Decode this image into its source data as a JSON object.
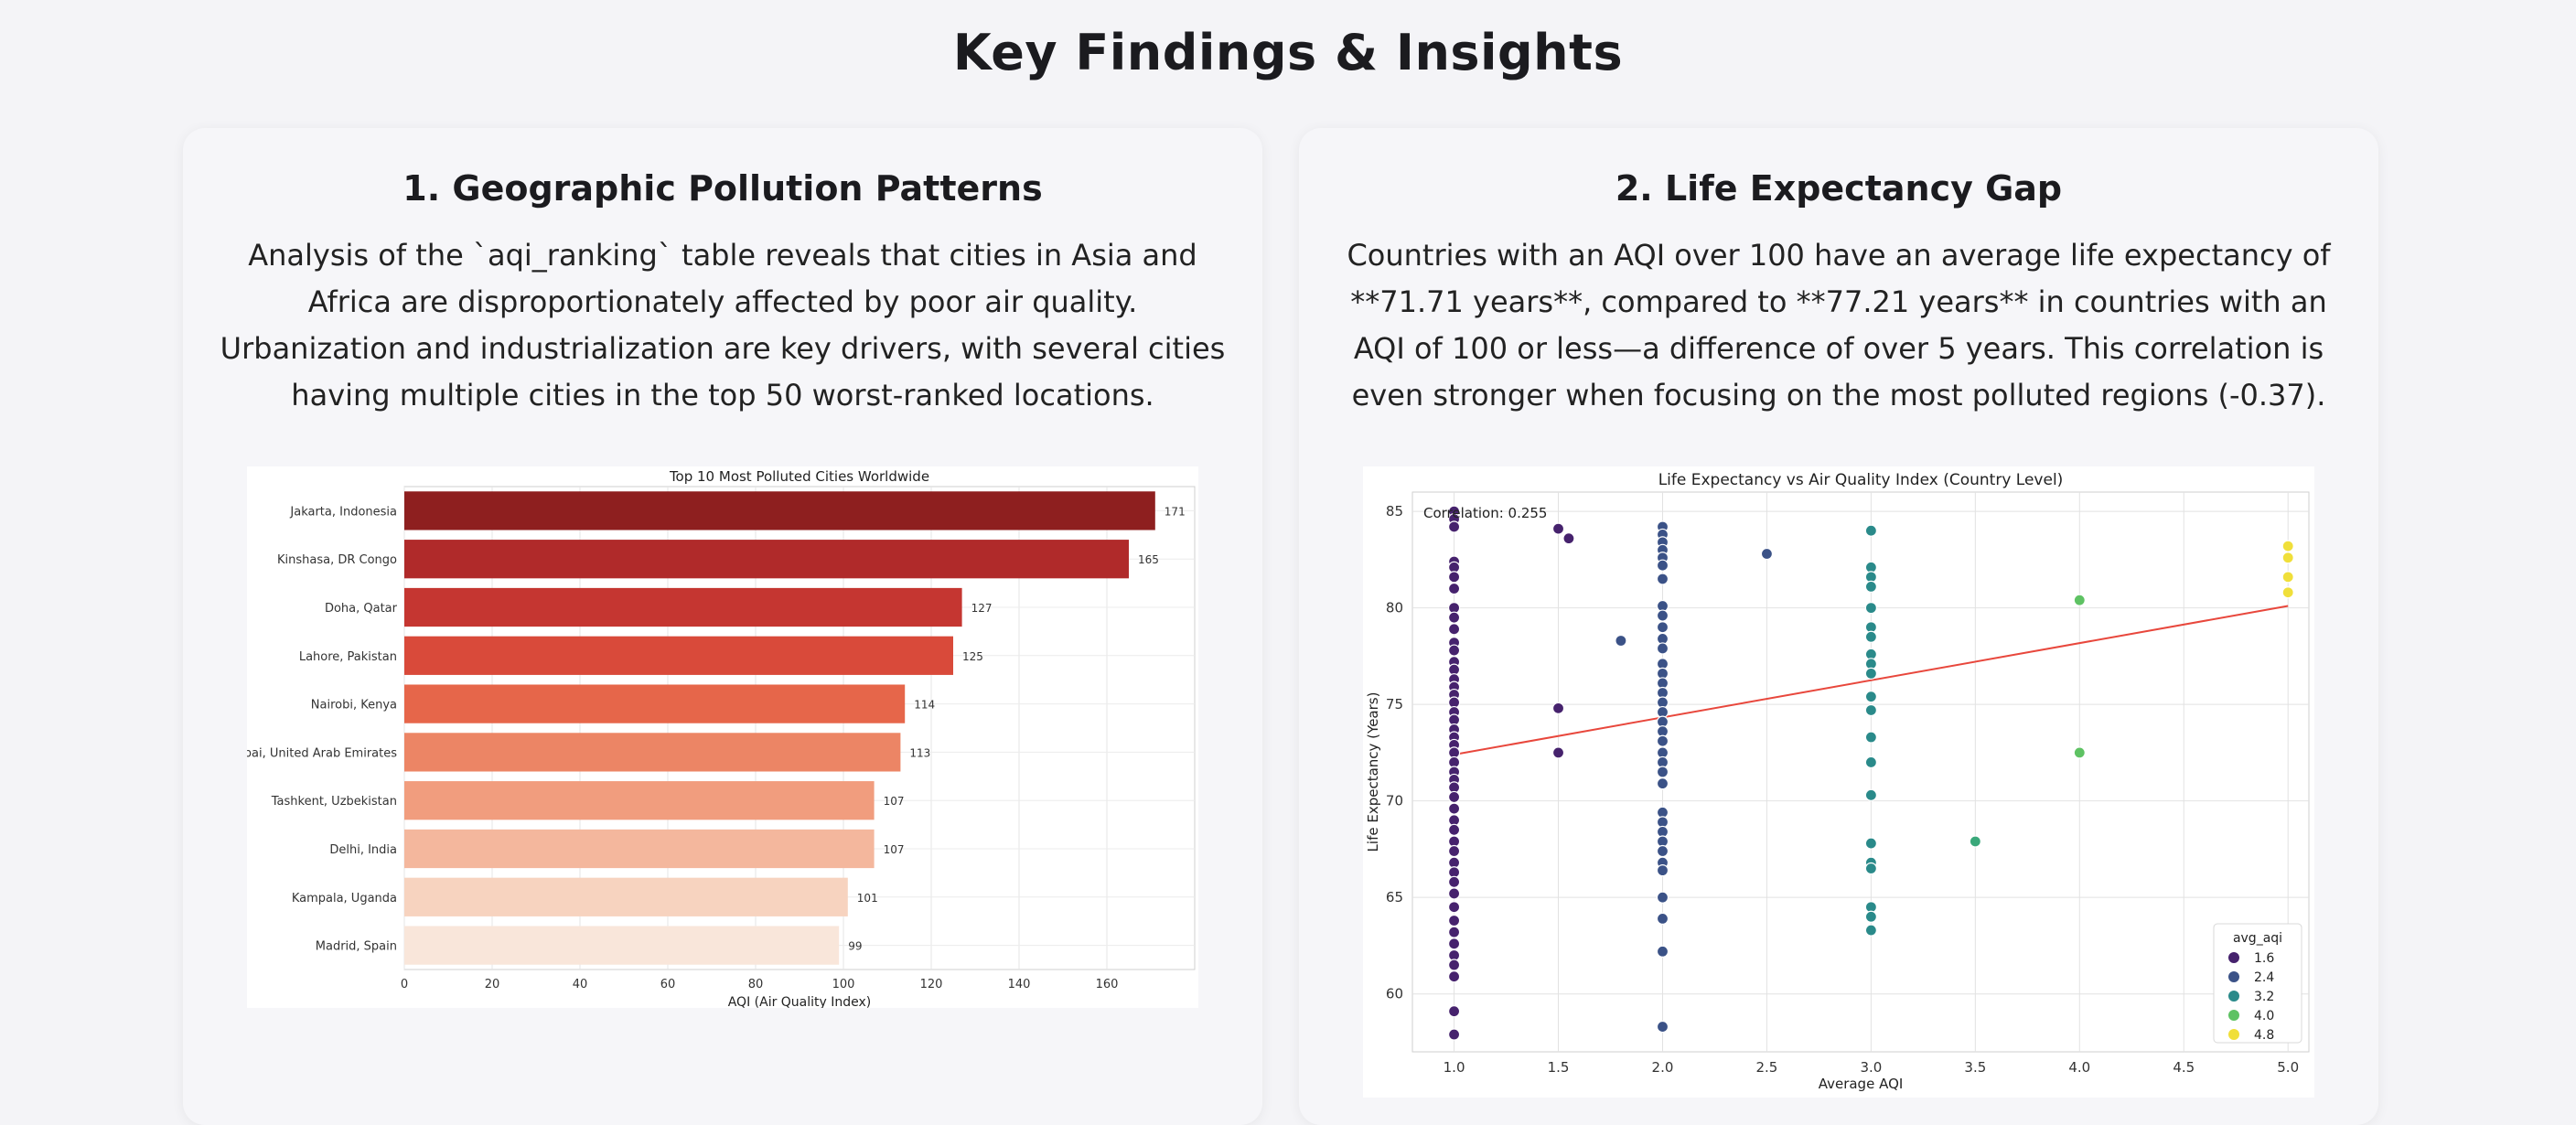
{
  "page": {
    "title": "Key Findings & Insights"
  },
  "cards": [
    {
      "heading": "1. Geographic Pollution Patterns",
      "body": "Analysis of the `aqi_ranking` table reveals that cities in Asia and Africa are disproportionately affected by poor air quality. Urbanization and industrialization are key drivers, with several cities having multiple cities in the top 50 worst-ranked locations."
    },
    {
      "heading": "2. Life Expectancy Gap",
      "body": "Countries with an AQI over 100 have an average life expectancy of **71.71 years**, compared to **77.21 years** in countries with an AQI of 100 or less—a difference of over 5 years. This correlation is even stronger when focusing on the most polluted regions (-0.37)."
    }
  ],
  "chart_data": [
    {
      "type": "bar",
      "orientation": "horizontal",
      "title": "Top 10 Most Polluted Cities Worldwide",
      "xlabel": "AQI (Air Quality Index)",
      "ylabel": "",
      "xlim": [
        0,
        180
      ],
      "xticks": [
        0,
        20,
        40,
        60,
        80,
        100,
        120,
        140,
        160
      ],
      "grid": true,
      "categories": [
        "Jakarta, Indonesia",
        "Kinshasa, DR Congo",
        "Doha, Qatar",
        "Lahore, Pakistan",
        "Nairobi, Kenya",
        "Dubai, United Arab Emirates",
        "Tashkent, Uzbekistan",
        "Delhi, India",
        "Kampala, Uganda",
        "Madrid, Spain"
      ],
      "values": [
        171,
        165,
        127,
        125,
        114,
        113,
        107,
        107,
        101,
        99
      ],
      "colors": [
        "#8e1f1f",
        "#b02a2a",
        "#c53631",
        "#d94a3a",
        "#e6664a",
        "#ec8565",
        "#f19d7e",
        "#f4b79d",
        "#f7d3bf",
        "#f9e6da"
      ]
    },
    {
      "type": "scatter",
      "title": "Life Expectancy vs Air Quality Index (Country Level)",
      "xlabel": "Average AQI",
      "ylabel": "Life Expectancy (Years)",
      "xlim": [
        0.8,
        5.1
      ],
      "ylim": [
        57,
        86
      ],
      "xticks": [
        1.0,
        1.5,
        2.0,
        2.5,
        3.0,
        3.5,
        4.0,
        4.5,
        5.0
      ],
      "yticks": [
        60,
        65,
        70,
        75,
        80,
        85
      ],
      "grid": true,
      "annotation": "Correlation: 0.255",
      "trendline": {
        "x": [
          1.0,
          5.0
        ],
        "y": [
          72.4,
          80.1
        ],
        "color": "#e8473c"
      },
      "legend": {
        "title": "avg_aqi",
        "position": "bottom-right",
        "entries": [
          {
            "label": "1.6",
            "color": "#46226d"
          },
          {
            "label": "2.4",
            "color": "#3b5287"
          },
          {
            "label": "3.2",
            "color": "#2a8a8a"
          },
          {
            "label": "4.0",
            "color": "#5ec263"
          },
          {
            "label": "4.8",
            "color": "#f0df3a"
          }
        ]
      },
      "series": [
        {
          "x": 1.0,
          "y": [
            85.0,
            84.6,
            84.2,
            82.4,
            82.1,
            81.6,
            81.0,
            80.0,
            79.5,
            78.9,
            78.2,
            77.8,
            77.2,
            76.8,
            76.3,
            75.9,
            75.5,
            75.1,
            74.6,
            74.2,
            73.7,
            73.3,
            72.9,
            72.5,
            72.0,
            71.5,
            71.1,
            70.7,
            70.2,
            69.6,
            69.0,
            68.5,
            67.9,
            67.4,
            66.8,
            66.3,
            65.8,
            65.2,
            64.5,
            63.8,
            63.2,
            62.6,
            62.0,
            61.5,
            60.9,
            59.1,
            57.9
          ],
          "color": "#46226d"
        },
        {
          "x": 1.5,
          "y": [
            84.1,
            74.8,
            72.5
          ],
          "color": "#46226d"
        },
        {
          "x": 1.55,
          "y": [
            83.6
          ],
          "color": "#46226d"
        },
        {
          "x": 1.8,
          "y": [
            78.3
          ],
          "color": "#3b5287"
        },
        {
          "x": 2.0,
          "y": [
            84.2,
            83.8,
            83.4,
            83.0,
            82.6,
            82.2,
            81.5,
            80.1,
            79.6,
            79.0,
            78.4,
            77.9,
            77.1,
            76.6,
            76.1,
            75.6,
            75.1,
            74.6,
            74.1,
            73.6,
            73.1,
            72.5,
            72.0,
            71.5,
            70.9,
            69.4,
            68.9,
            68.4,
            67.9,
            67.4,
            66.8,
            66.4,
            65.0,
            63.9,
            62.2,
            58.3
          ],
          "color": "#3b5287"
        },
        {
          "x": 2.5,
          "y": [
            82.8
          ],
          "color": "#3b5287"
        },
        {
          "x": 3.0,
          "y": [
            84.0,
            82.1,
            81.6,
            81.1,
            80.0,
            79.0,
            78.5,
            77.6,
            77.1,
            76.6,
            75.4,
            74.7,
            73.3,
            72.0,
            70.3,
            67.8,
            66.8,
            66.5,
            64.5,
            64.0,
            63.3
          ],
          "color": "#2a8a8a"
        },
        {
          "x": 3.5,
          "y": [
            67.9
          ],
          "color": "#3aa87a"
        },
        {
          "x": 4.0,
          "y": [
            80.4,
            72.5
          ],
          "color": "#5ec263"
        },
        {
          "x": 5.0,
          "y": [
            83.2,
            82.6,
            81.6,
            80.8
          ],
          "color": "#f0df3a"
        }
      ]
    }
  ]
}
